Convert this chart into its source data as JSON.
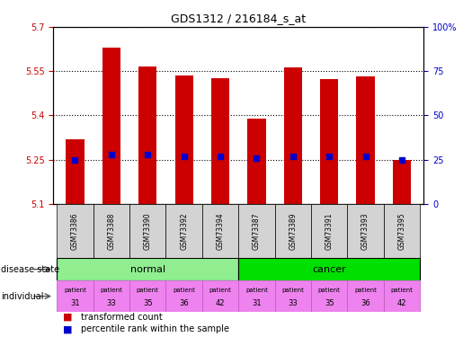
{
  "title": "GDS1312 / 216184_s_at",
  "samples": [
    "GSM73386",
    "GSM73388",
    "GSM73390",
    "GSM73392",
    "GSM73394",
    "GSM73387",
    "GSM73389",
    "GSM73391",
    "GSM73393",
    "GSM73395"
  ],
  "transformed_count": [
    5.32,
    5.63,
    5.565,
    5.535,
    5.525,
    5.39,
    5.562,
    5.522,
    5.532,
    5.25
  ],
  "percentile_rank": [
    25,
    28,
    28,
    27,
    27,
    26,
    27,
    27,
    27,
    25
  ],
  "ylim_left": [
    5.1,
    5.7
  ],
  "ylim_right": [
    0,
    100
  ],
  "yticks_left": [
    5.1,
    5.25,
    5.4,
    5.55,
    5.7
  ],
  "ytick_labels_left": [
    "5.1",
    "5.25",
    "5.4",
    "5.55",
    "5.7"
  ],
  "yticks_right": [
    0,
    25,
    50,
    75,
    100
  ],
  "ytick_labels_right": [
    "0",
    "25",
    "50",
    "75",
    "100%"
  ],
  "individuals": [
    "31",
    "33",
    "35",
    "36",
    "42",
    "31",
    "33",
    "35",
    "36",
    "42"
  ],
  "normal_bg": "#90ee90",
  "cancer_bg": "#00e000",
  "individual_color": "#ee82ee",
  "bar_color": "#cc0000",
  "percentile_color": "#0000cc",
  "grid_color": "#000000",
  "tick_color_left": "#cc0000",
  "tick_color_right": "#0000cc",
  "sample_box_color": "#d3d3d3",
  "bar_width": 0.5,
  "figsize": [
    5.15,
    3.75
  ],
  "dpi": 100
}
